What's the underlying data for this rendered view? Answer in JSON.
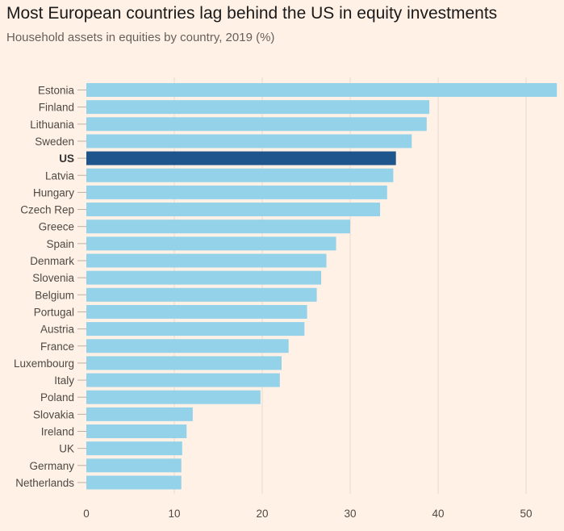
{
  "title": "Most European countries lag behind the US in equity investments",
  "subtitle": "Household assets in equities by country, 2019 (%)",
  "colors": {
    "background": "#FFF1E5",
    "bar": "#93D2E9",
    "highlight": "#1E558C",
    "grid": "#E6DCD2",
    "label": "#4d4945"
  },
  "chart_data": {
    "type": "bar",
    "orientation": "horizontal",
    "categories": [
      "Estonia",
      "Finland",
      "Lithuania",
      "Sweden",
      "US",
      "Latvia",
      "Hungary",
      "Czech Rep",
      "Greece",
      "Spain",
      "Denmark",
      "Slovenia",
      "Belgium",
      "Portugal",
      "Austria",
      "France",
      "Luxembourg",
      "Italy",
      "Poland",
      "Slovakia",
      "Ireland",
      "UK",
      "Germany",
      "Netherlands"
    ],
    "values": [
      53.5,
      39,
      38.7,
      37,
      35.2,
      34.9,
      34.2,
      33.4,
      30,
      28.4,
      27.3,
      26.7,
      26.2,
      25.1,
      24.8,
      23,
      22.2,
      22,
      19.8,
      12.1,
      11.4,
      10.9,
      10.8,
      10.8
    ],
    "highlight": "US",
    "title": "Most European countries lag behind the US in equity investments",
    "subtitle": "Household assets in equities by country, 2019 (%)",
    "xlim": [
      0,
      53.5
    ],
    "xticks": [
      0,
      10,
      20,
      30,
      40,
      50
    ],
    "grid": true
  }
}
